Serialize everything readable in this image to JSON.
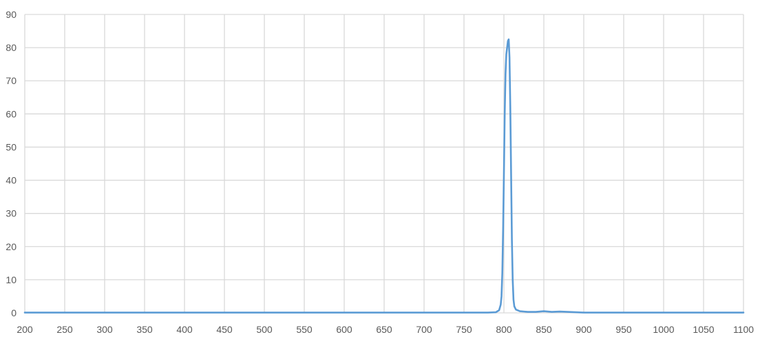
{
  "chart_data": {
    "type": "line",
    "title": "",
    "xlabel": "",
    "ylabel": "",
    "xlim": [
      200,
      1100
    ],
    "ylim": [
      0,
      90
    ],
    "x_ticks": [
      200,
      250,
      300,
      350,
      400,
      450,
      500,
      550,
      600,
      650,
      700,
      750,
      800,
      850,
      900,
      950,
      1000,
      1050,
      1100
    ],
    "y_ticks": [
      0,
      10,
      20,
      30,
      40,
      50,
      60,
      70,
      80,
      90
    ],
    "grid": true,
    "legend": "none",
    "series": [
      {
        "color": "#5b9bd5",
        "x": [
          200,
          300,
          400,
          500,
          600,
          700,
          780,
          790,
          794,
          796,
          797,
          798,
          799,
          800,
          801,
          802,
          803,
          804,
          805,
          806,
          807,
          808,
          809,
          810,
          811,
          812,
          813,
          815,
          820,
          830,
          840,
          850,
          860,
          870,
          880,
          890,
          900,
          1000,
          1100
        ],
        "y": [
          0.1,
          0.1,
          0.1,
          0.1,
          0.1,
          0.1,
          0.1,
          0.2,
          0.8,
          2.5,
          5,
          12,
          25,
          42,
          60,
          72,
          78,
          80,
          82,
          82.5,
          77,
          62,
          42,
          22,
          10,
          4,
          2,
          1,
          0.5,
          0.3,
          0.3,
          0.5,
          0.3,
          0.4,
          0.3,
          0.2,
          0.1,
          0.1,
          0.1
        ]
      }
    ]
  }
}
